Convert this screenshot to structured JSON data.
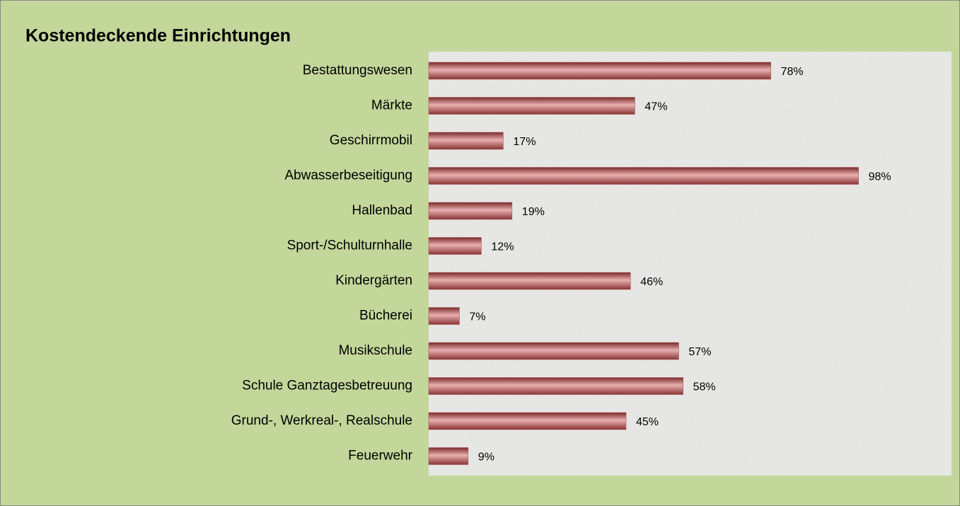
{
  "chart_data": {
    "type": "bar",
    "orientation": "horizontal",
    "title": "Kostendeckende Einrichtungen",
    "categories": [
      "Bestattungswesen",
      "Märkte",
      "Geschirrmobil",
      "Abwasserbeseitigung",
      "Hallenbad",
      "Sport-/Schulturnhalle",
      "Kindergärten",
      "Bücherei",
      "Musikschule",
      "Schule Ganztagesbetreuung",
      "Grund-, Werkreal-, Realschule",
      "Feuerwehr"
    ],
    "values": [
      78,
      47,
      17,
      98,
      19,
      12,
      46,
      7,
      57,
      58,
      45,
      9
    ],
    "value_labels": [
      "78%",
      "47%",
      "17%",
      "98%",
      "19%",
      "12%",
      "46%",
      "7%",
      "57%",
      "58%",
      "45%",
      "9%"
    ],
    "color": "#a04848"
  }
}
